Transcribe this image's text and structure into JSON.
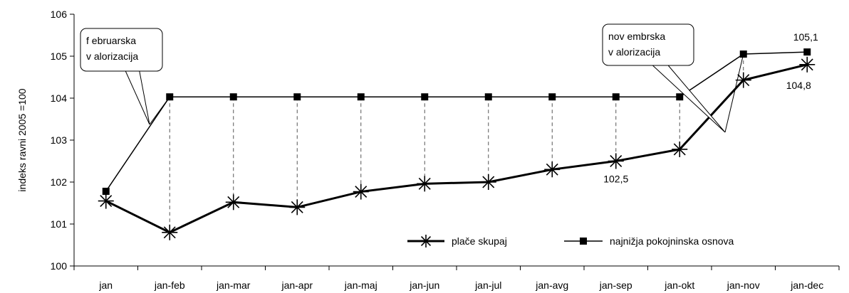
{
  "chart_data": {
    "type": "line",
    "categories": [
      "jan",
      "jan-feb",
      "jan-mar",
      "jan-apr",
      "jan-maj",
      "jan-jun",
      "jan-jul",
      "jan-avg",
      "jan-sep",
      "jan-okt",
      "jan-nov",
      "jan-dec"
    ],
    "series": [
      {
        "name": "plače skupaj",
        "values": [
          101.55,
          100.8,
          101.52,
          101.4,
          101.77,
          101.96,
          102.0,
          102.3,
          102.5,
          102.78,
          104.43,
          104.8
        ],
        "color": "#000000",
        "marker": "star"
      },
      {
        "name": "najnižja pokojninska osnova",
        "values": [
          101.78,
          104.03,
          104.03,
          104.03,
          104.03,
          104.03,
          104.03,
          104.03,
          104.03,
          104.03,
          105.05,
          105.1
        ],
        "color": "#000000",
        "marker": "square"
      }
    ],
    "ylabel": "indeks ravni 2005 =100",
    "xlabel": "",
    "ylim": [
      100,
      106
    ],
    "yticks": [
      "100",
      "101",
      "102",
      "103",
      "104",
      "105",
      "106"
    ],
    "grid": false,
    "legend": "bottom-right",
    "data_labels": [
      {
        "text": "102,5",
        "series": 0,
        "index": 8
      },
      {
        "text": "104,8",
        "series": 0,
        "index": 11
      },
      {
        "text": "105,1",
        "series": 1,
        "index": 11
      }
    ],
    "callouts": [
      {
        "lines": [
          "f ebruarska",
          "v alorizacija"
        ],
        "target_index": 1
      },
      {
        "lines": [
          "nov embrska",
          "v alorizacija"
        ],
        "target_index": 10
      }
    ]
  }
}
